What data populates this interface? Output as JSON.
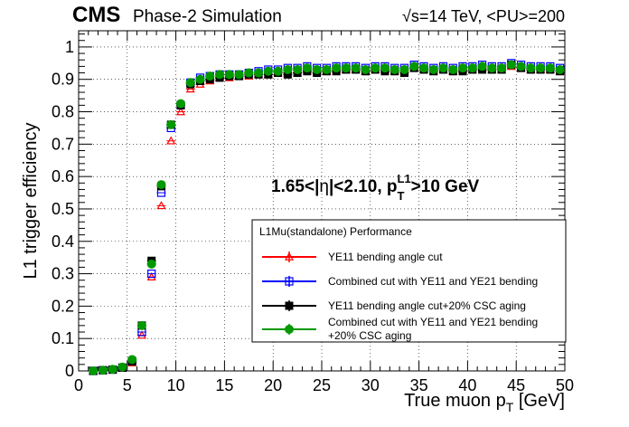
{
  "header": {
    "cms": "CMS",
    "subtitle": "Phase-2 Simulation",
    "energy": "√s=14 TeV, <PU>=200"
  },
  "annotation": {
    "prefix": "1.65<|",
    "eta": "η",
    "mid": "|<2.10, p",
    "sup": "L1",
    "sub": "T",
    "suffix": ">10 GeV"
  },
  "legend": {
    "title": "L1Mu(standalone) Performance"
  },
  "chart_data": {
    "type": "scatter",
    "xlabel_main": "True muon p",
    "xlabel_sub": "T",
    "xlabel_unit": " [GeV]",
    "ylabel": "L1 trigger efficiency",
    "xlim": [
      0,
      50
    ],
    "ylim": [
      0,
      1.05
    ],
    "x_ticks": [
      "0",
      "5",
      "10",
      "15",
      "20",
      "25",
      "30",
      "35",
      "40",
      "45",
      "50"
    ],
    "y_ticks": [
      "0",
      "0.1",
      "0.2",
      "0.3",
      "0.4",
      "0.5",
      "0.6",
      "0.7",
      "0.8",
      "0.9",
      "1"
    ],
    "grid": true,
    "legend_position": "bottom-right",
    "x": [
      1.5,
      2.5,
      3.5,
      4.5,
      5.5,
      6.5,
      7.5,
      8.5,
      9.5,
      10.5,
      11.5,
      12.5,
      13.5,
      14.5,
      15.5,
      16.5,
      17.5,
      18.5,
      19.5,
      20.5,
      21.5,
      22.5,
      23.5,
      24.5,
      25.5,
      26.5,
      27.5,
      28.5,
      29.5,
      30.5,
      31.5,
      32.5,
      33.5,
      34.5,
      35.5,
      36.5,
      37.5,
      38.5,
      39.5,
      40.5,
      41.5,
      42.5,
      43.5,
      44.5,
      45.5,
      46.5,
      47.5,
      48.5,
      49.5
    ],
    "series": [
      {
        "name": "YE11 bending angle cut",
        "color": "#ff0000",
        "marker": "open-triangle",
        "values": [
          0.0,
          0.002,
          0.003,
          0.008,
          0.025,
          0.11,
          0.29,
          0.51,
          0.71,
          0.8,
          0.87,
          0.885,
          0.895,
          0.905,
          0.905,
          0.91,
          0.91,
          0.915,
          0.915,
          0.92,
          0.92,
          0.92,
          0.93,
          0.925,
          0.925,
          0.93,
          0.93,
          0.93,
          0.925,
          0.93,
          0.93,
          0.925,
          0.925,
          0.935,
          0.93,
          0.925,
          0.93,
          0.925,
          0.93,
          0.93,
          0.935,
          0.93,
          0.93,
          0.94,
          0.935,
          0.93,
          0.93,
          0.93,
          0.925
        ]
      },
      {
        "name": "Combined cut with YE11 and YE21 bending",
        "color": "#0000ff",
        "marker": "open-square",
        "values": [
          0.0,
          0.002,
          0.004,
          0.01,
          0.03,
          0.12,
          0.3,
          0.55,
          0.75,
          0.82,
          0.89,
          0.905,
          0.91,
          0.915,
          0.915,
          0.915,
          0.92,
          0.925,
          0.93,
          0.93,
          0.935,
          0.935,
          0.94,
          0.935,
          0.935,
          0.94,
          0.94,
          0.94,
          0.935,
          0.94,
          0.94,
          0.935,
          0.935,
          0.945,
          0.94,
          0.935,
          0.94,
          0.935,
          0.94,
          0.94,
          0.945,
          0.94,
          0.94,
          0.95,
          0.945,
          0.94,
          0.94,
          0.94,
          0.935
        ]
      },
      {
        "name": "YE11 bending angle cut+20% CSC aging",
        "color": "#000000",
        "marker": "filled-square",
        "values": [
          0.0,
          0.002,
          0.004,
          0.01,
          0.03,
          0.14,
          0.34,
          0.57,
          0.76,
          0.82,
          0.885,
          0.895,
          0.9,
          0.905,
          0.91,
          0.91,
          0.915,
          0.915,
          0.915,
          0.92,
          0.915,
          0.92,
          0.925,
          0.92,
          0.925,
          0.925,
          0.93,
          0.93,
          0.925,
          0.93,
          0.925,
          0.925,
          0.92,
          0.935,
          0.93,
          0.925,
          0.93,
          0.925,
          0.925,
          0.93,
          0.93,
          0.93,
          0.93,
          0.945,
          0.935,
          0.93,
          0.93,
          0.93,
          0.925
        ]
      },
      {
        "name": "Combined cut with YE11 and YE21 bending\n+20% CSC aging",
        "color": "#009900",
        "marker": "filled-circle",
        "values": [
          0.0,
          0.002,
          0.005,
          0.012,
          0.035,
          0.14,
          0.33,
          0.575,
          0.76,
          0.825,
          0.89,
          0.9,
          0.91,
          0.915,
          0.915,
          0.915,
          0.92,
          0.92,
          0.925,
          0.925,
          0.93,
          0.93,
          0.935,
          0.93,
          0.93,
          0.935,
          0.935,
          0.935,
          0.93,
          0.935,
          0.935,
          0.93,
          0.93,
          0.94,
          0.935,
          0.93,
          0.935,
          0.93,
          0.935,
          0.935,
          0.94,
          0.935,
          0.935,
          0.945,
          0.94,
          0.935,
          0.935,
          0.935,
          0.93
        ]
      }
    ]
  }
}
